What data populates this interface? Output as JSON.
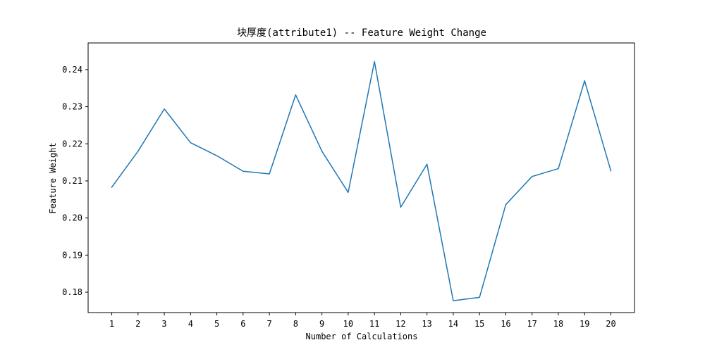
{
  "colors": {
    "line": "#1f77b4",
    "axis": "#000000",
    "background": "#ffffff"
  },
  "chart_data": {
    "type": "line",
    "title": "块厚度(attribute1) -- Feature Weight Change",
    "xlabel": "Number of Calculations",
    "ylabel": "Feature Weight",
    "grid": false,
    "legend": "none",
    "x": [
      1,
      2,
      3,
      4,
      5,
      6,
      7,
      8,
      9,
      10,
      11,
      12,
      13,
      14,
      15,
      16,
      17,
      18,
      19,
      20
    ],
    "values": [
      0.2083,
      0.218,
      0.2294,
      0.2203,
      0.2168,
      0.2126,
      0.2119,
      0.2332,
      0.218,
      0.2069,
      0.2422,
      0.2029,
      0.2145,
      0.1777,
      0.1786,
      0.2036,
      0.2112,
      0.2133,
      0.237,
      0.2127
    ],
    "xlim": [
      0.1,
      20.9
    ],
    "ylim": [
      0.1745,
      0.2472
    ],
    "xticks": [
      1,
      2,
      3,
      4,
      5,
      6,
      7,
      8,
      9,
      10,
      11,
      12,
      13,
      14,
      15,
      16,
      17,
      18,
      19,
      20
    ],
    "xtick_labels": [
      "1",
      "2",
      "3",
      "4",
      "5",
      "6",
      "7",
      "8",
      "9",
      "10",
      "11",
      "12",
      "13",
      "14",
      "15",
      "16",
      "17",
      "18",
      "19",
      "20"
    ],
    "yticks": [
      0.18,
      0.19,
      0.2,
      0.21,
      0.22,
      0.23,
      0.24
    ],
    "ytick_labels": [
      "0.18",
      "0.19",
      "0.20",
      "0.21",
      "0.22",
      "0.23",
      "0.24"
    ]
  }
}
